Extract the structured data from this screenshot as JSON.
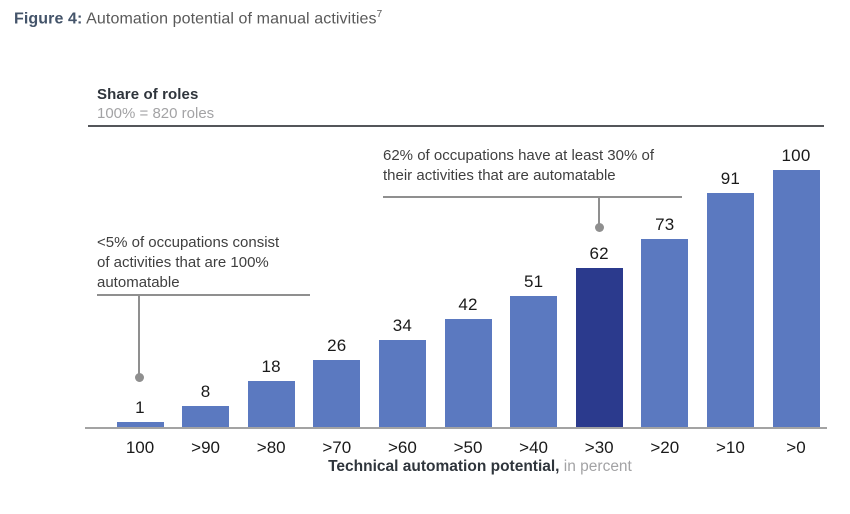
{
  "figure": {
    "label": "Figure 4:",
    "title": " Automation potential of manual activities",
    "footnote_marker": "7"
  },
  "chart_data": {
    "type": "bar",
    "title": "Share of roles",
    "subtitle": "100% = 820 roles",
    "categories": [
      "100",
      ">90",
      ">80",
      ">70",
      ">60",
      ">50",
      ">40",
      ">30",
      ">20",
      ">10",
      ">0"
    ],
    "values": [
      1,
      8,
      18,
      26,
      34,
      42,
      51,
      62,
      73,
      91,
      100
    ],
    "highlight_index": 7,
    "highlight_category": ">30",
    "bar_color": "#5b79c0",
    "highlight_color": "#2b3a8d",
    "ylim": [
      0,
      100
    ],
    "grid": false,
    "legend": false,
    "xlabel_bold": "Technical automation potential,",
    "xlabel_gray": " in percent",
    "annotations": [
      {
        "text": "<5% of occupations consist\nof activities that are 100%\nautomatable",
        "target_category": "100"
      },
      {
        "text": "62% of occupations have at least 30% of\ntheir activities that are automatable",
        "target_category": ">30"
      }
    ]
  }
}
